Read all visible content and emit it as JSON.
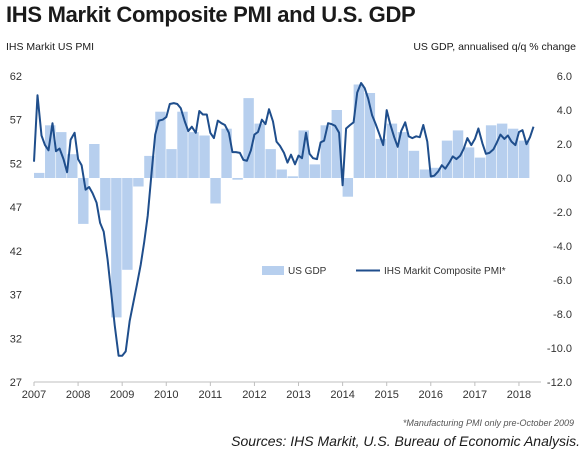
{
  "chart_data": {
    "type": "bar+line",
    "title": "IHS Markit Composite PMI and U.S. GDP",
    "left_axis_title": "IHS Markit US PMI",
    "right_axis_title": "US GDP, annualised q/q % change",
    "footnote": "*Manufacturing PMI only pre-October 2009",
    "sources": "Sources:  IHS Markit, U.S. Bureau of Economic Analysis.",
    "left_axis": {
      "min": 27,
      "max": 62,
      "ticks": [
        62,
        57,
        52,
        47,
        42,
        37,
        32,
        27
      ]
    },
    "right_axis": {
      "min": -12,
      "max": 6,
      "ticks": [
        "6.0",
        "4.0",
        "2.0",
        "0.0",
        "-2.0",
        "-4.0",
        "-6.0",
        "-8.0",
        "-10.0",
        "-12.0"
      ]
    },
    "x_axis": {
      "start": 2007,
      "end": 2018.5,
      "ticks": [
        "2007",
        "2008",
        "2009",
        "2010",
        "2011",
        "2012",
        "2013",
        "2014",
        "2015",
        "2016",
        "2017",
        "2018"
      ]
    },
    "legend_placement": "lower-right",
    "colors": {
      "gdp": "#b7cfee",
      "pmi": "#1f4e8c"
    },
    "series": [
      {
        "name": "US GDP",
        "kind": "bar",
        "quarters": [
          "2007Q1",
          "2007Q2",
          "2007Q3",
          "2007Q4",
          "2008Q1",
          "2008Q2",
          "2008Q3",
          "2008Q4",
          "2009Q1",
          "2009Q2",
          "2009Q3",
          "2009Q4",
          "2010Q1",
          "2010Q2",
          "2010Q3",
          "2010Q4",
          "2011Q1",
          "2011Q2",
          "2011Q3",
          "2011Q4",
          "2012Q1",
          "2012Q2",
          "2012Q3",
          "2012Q4",
          "2013Q1",
          "2013Q2",
          "2013Q3",
          "2013Q4",
          "2014Q1",
          "2014Q2",
          "2014Q3",
          "2014Q4",
          "2015Q1",
          "2015Q2",
          "2015Q3",
          "2015Q4",
          "2016Q1",
          "2016Q2",
          "2016Q3",
          "2016Q4",
          "2017Q1",
          "2017Q2",
          "2017Q3",
          "2017Q4",
          "2018Q1"
        ],
        "values": [
          0.3,
          3.1,
          2.7,
          1.4,
          -2.7,
          2.0,
          -1.9,
          -8.2,
          -5.4,
          -0.5,
          1.3,
          3.9,
          1.7,
          3.9,
          2.7,
          2.5,
          -1.5,
          2.9,
          -0.1,
          4.7,
          3.2,
          1.7,
          0.5,
          0.1,
          2.8,
          0.8,
          3.1,
          4.0,
          -1.1,
          5.5,
          5.0,
          2.3,
          3.2,
          2.7,
          1.6,
          0.5,
          0.6,
          2.2,
          2.8,
          1.8,
          1.2,
          3.1,
          3.2,
          2.9,
          2.2
        ]
      },
      {
        "name": "IHS Markit Composite PMI*",
        "kind": "line",
        "x": [
          2007.0,
          2007.08,
          2007.17,
          2007.25,
          2007.33,
          2007.42,
          2007.5,
          2007.58,
          2007.67,
          2007.75,
          2007.83,
          2007.92,
          2008.0,
          2008.08,
          2008.17,
          2008.25,
          2008.33,
          2008.42,
          2008.5,
          2008.58,
          2008.67,
          2008.75,
          2008.83,
          2008.92,
          2009.0,
          2009.08,
          2009.17,
          2009.25,
          2009.33,
          2009.42,
          2009.5,
          2009.58,
          2009.67,
          2009.75,
          2009.83,
          2009.92,
          2010.0,
          2010.08,
          2010.17,
          2010.25,
          2010.33,
          2010.42,
          2010.5,
          2010.58,
          2010.67,
          2010.75,
          2010.83,
          2010.92,
          2011.0,
          2011.08,
          2011.17,
          2011.25,
          2011.33,
          2011.42,
          2011.5,
          2011.58,
          2011.67,
          2011.75,
          2011.83,
          2011.92,
          2012.0,
          2012.08,
          2012.17,
          2012.25,
          2012.33,
          2012.42,
          2012.5,
          2012.58,
          2012.67,
          2012.75,
          2012.83,
          2012.92,
          2013.0,
          2013.08,
          2013.17,
          2013.25,
          2013.33,
          2013.42,
          2013.5,
          2013.58,
          2013.67,
          2013.75,
          2013.83,
          2013.92,
          2014.0,
          2014.08,
          2014.17,
          2014.25,
          2014.33,
          2014.42,
          2014.5,
          2014.58,
          2014.67,
          2014.75,
          2014.83,
          2014.92,
          2015.0,
          2015.08,
          2015.17,
          2015.25,
          2015.33,
          2015.42,
          2015.5,
          2015.58,
          2015.67,
          2015.75,
          2015.83,
          2015.92,
          2016.0,
          2016.08,
          2016.17,
          2016.25,
          2016.33,
          2016.42,
          2016.5,
          2016.58,
          2016.67,
          2016.75,
          2016.83,
          2016.92,
          2017.0,
          2017.08,
          2017.17,
          2017.25,
          2017.33,
          2017.42,
          2017.5,
          2017.58,
          2017.67,
          2017.75,
          2017.83,
          2017.92,
          2018.0,
          2018.08,
          2018.17,
          2018.25,
          2018.33
        ],
        "values": [
          52.2,
          59.8,
          55.2,
          54.1,
          53.5,
          56.6,
          53.4,
          53.7,
          52.5,
          51.0,
          54.7,
          55.5,
          52.5,
          51.8,
          49.0,
          49.3,
          48.6,
          47.5,
          45.2,
          44.2,
          41.0,
          37.2,
          33.5,
          30.0,
          30.0,
          30.5,
          34.0,
          36.0,
          38.0,
          40.4,
          43.0,
          46.0,
          51.1,
          55.3,
          56.9,
          57.0,
          57.3,
          58.8,
          58.9,
          58.8,
          58.3,
          56.8,
          55.7,
          56.2,
          55.5,
          58.0,
          57.6,
          57.6,
          55.5,
          54.9,
          56.9,
          56.6,
          56.4,
          55.5,
          53.3,
          53.3,
          53.2,
          52.4,
          52.3,
          53.5,
          55.3,
          55.6,
          57.0,
          56.5,
          58.2,
          56.8,
          54.5,
          54.0,
          53.2,
          52.1,
          53.0,
          51.9,
          52.9,
          52.6,
          55.5,
          53.1,
          52.6,
          52.5,
          54.4,
          54.6,
          56.6,
          56.5,
          56.3,
          55.5,
          49.5,
          56.0,
          56.4,
          56.7,
          60.1,
          61.2,
          60.6,
          59.4,
          57.5,
          56.5,
          55.4,
          54.1,
          58.1,
          56.5,
          55.0,
          53.9,
          55.7,
          56.7,
          55.1,
          54.9,
          55.1,
          55.0,
          56.4,
          54.5,
          50.5,
          50.6,
          51.1,
          51.8,
          51.4,
          52.1,
          52.8,
          52.5,
          52.9,
          53.7,
          54.9,
          54.1,
          54.8,
          56.0,
          54.3,
          53.1,
          53.2,
          53.6,
          54.4,
          55.3,
          54.8,
          55.2,
          54.5,
          54.1,
          55.6,
          55.8,
          54.2,
          55.0,
          56.2
        ]
      }
    ]
  }
}
